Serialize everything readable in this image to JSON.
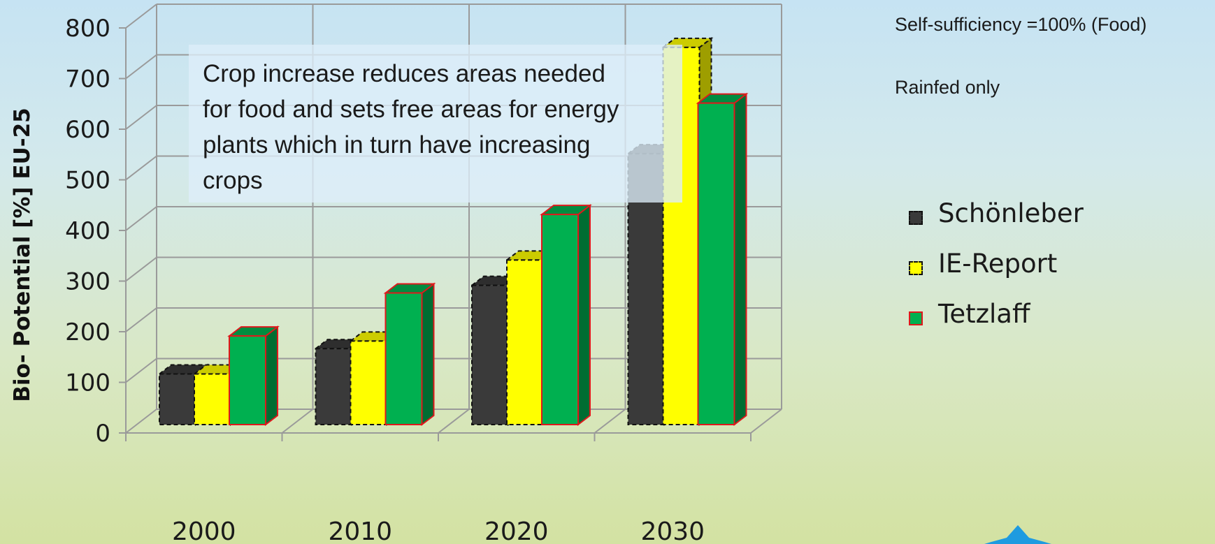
{
  "chart_data": {
    "type": "bar",
    "style": "3d-clustered-column",
    "categories": [
      "2000",
      "2010",
      "2020",
      "2030"
    ],
    "series": [
      {
        "name": "Schönleber",
        "values": [
          100,
          150,
          275,
          535
        ],
        "color": "#3a3a3a",
        "edge": "#111111",
        "edge_style": "dashed"
      },
      {
        "name": "IE-Report",
        "values": [
          100,
          165,
          325,
          745
        ],
        "color": "#ffff00",
        "edge": "#111111",
        "edge_style": "dashed"
      },
      {
        "name": "Tetzlaff",
        "values": [
          175,
          260,
          415,
          635
        ],
        "color": "#00b050",
        "edge": "#e0181c",
        "edge_style": "solid"
      }
    ],
    "ylabel": "Bio- Potential [%] EU-25",
    "ylim": [
      0,
      800
    ],
    "yticks": [
      "0",
      "100",
      "200",
      "300",
      "400",
      "500",
      "600",
      "700",
      "800"
    ],
    "grid": true,
    "legend_position": "right"
  },
  "annotations": {
    "self_sufficiency": "Self-sufficiency =100% (Food)",
    "rainfed": "Rainfed only",
    "callout_lines": [
      "Crop increase reduces areas needed",
      "for food and sets free areas for energy",
      "plants which in turn have increasing",
      "crops"
    ]
  },
  "legend": [
    {
      "label": "Schönleber",
      "color": "#3a3a3a",
      "edge": "#111111",
      "edge_style": "dashed"
    },
    {
      "label": "IE-Report",
      "color": "#ffff00",
      "edge": "#111111",
      "edge_style": "dashed"
    },
    {
      "label": "Tetzlaff",
      "color": "#00b050",
      "edge": "#e0181c",
      "edge_style": "solid"
    }
  ],
  "logo": {
    "icon": "blue-star-logo-icon",
    "color": "#1e9be0"
  }
}
